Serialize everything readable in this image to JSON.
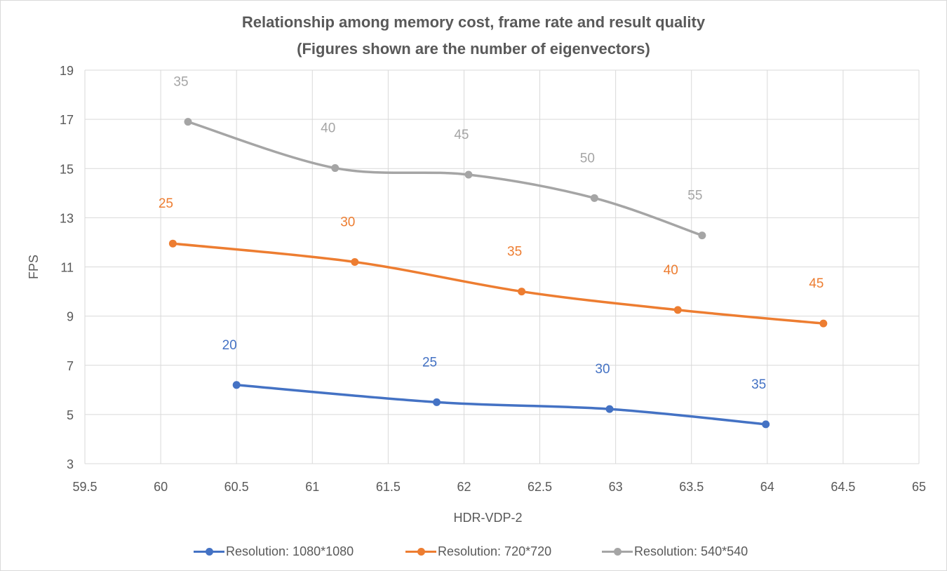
{
  "chart_data": {
    "type": "line",
    "title": "Relationship among memory cost, frame rate and result quality",
    "subtitle": "(Figures shown are the number of eigenvectors)",
    "xlabel": "HDR-VDP-2",
    "ylabel": "FPS",
    "xlim": [
      59.5,
      65
    ],
    "ylim": [
      3,
      19
    ],
    "x_ticks": [
      "59.5",
      "60",
      "60.5",
      "61",
      "61.5",
      "62",
      "62.5",
      "63",
      "63.5",
      "64",
      "64.5",
      "65"
    ],
    "y_ticks": [
      "3",
      "5",
      "7",
      "9",
      "11",
      "13",
      "15",
      "17",
      "19"
    ],
    "grid": true,
    "legend_position": "bottom",
    "series": [
      {
        "name": "Resolution: 1080*1080",
        "color": "#4472C4",
        "x": [
          60.5,
          61.82,
          62.96,
          63.99
        ],
        "y": [
          6.2,
          5.5,
          5.22,
          4.6
        ],
        "labels": [
          "20",
          "25",
          "30",
          "35"
        ]
      },
      {
        "name": "Resolution: 720*720",
        "color": "#ED7D31",
        "x": [
          60.08,
          61.28,
          62.38,
          63.41,
          64.37
        ],
        "y": [
          11.95,
          11.2,
          10.0,
          9.25,
          8.7
        ],
        "labels": [
          "25",
          "30",
          "35",
          "40",
          "45"
        ]
      },
      {
        "name": "Resolution: 540*540",
        "color": "#A5A5A5",
        "x": [
          60.18,
          61.15,
          62.03,
          62.86,
          63.57
        ],
        "y": [
          16.9,
          15.02,
          14.75,
          13.8,
          12.28
        ],
        "labels": [
          "35",
          "40",
          "45",
          "50",
          "55"
        ]
      }
    ]
  }
}
